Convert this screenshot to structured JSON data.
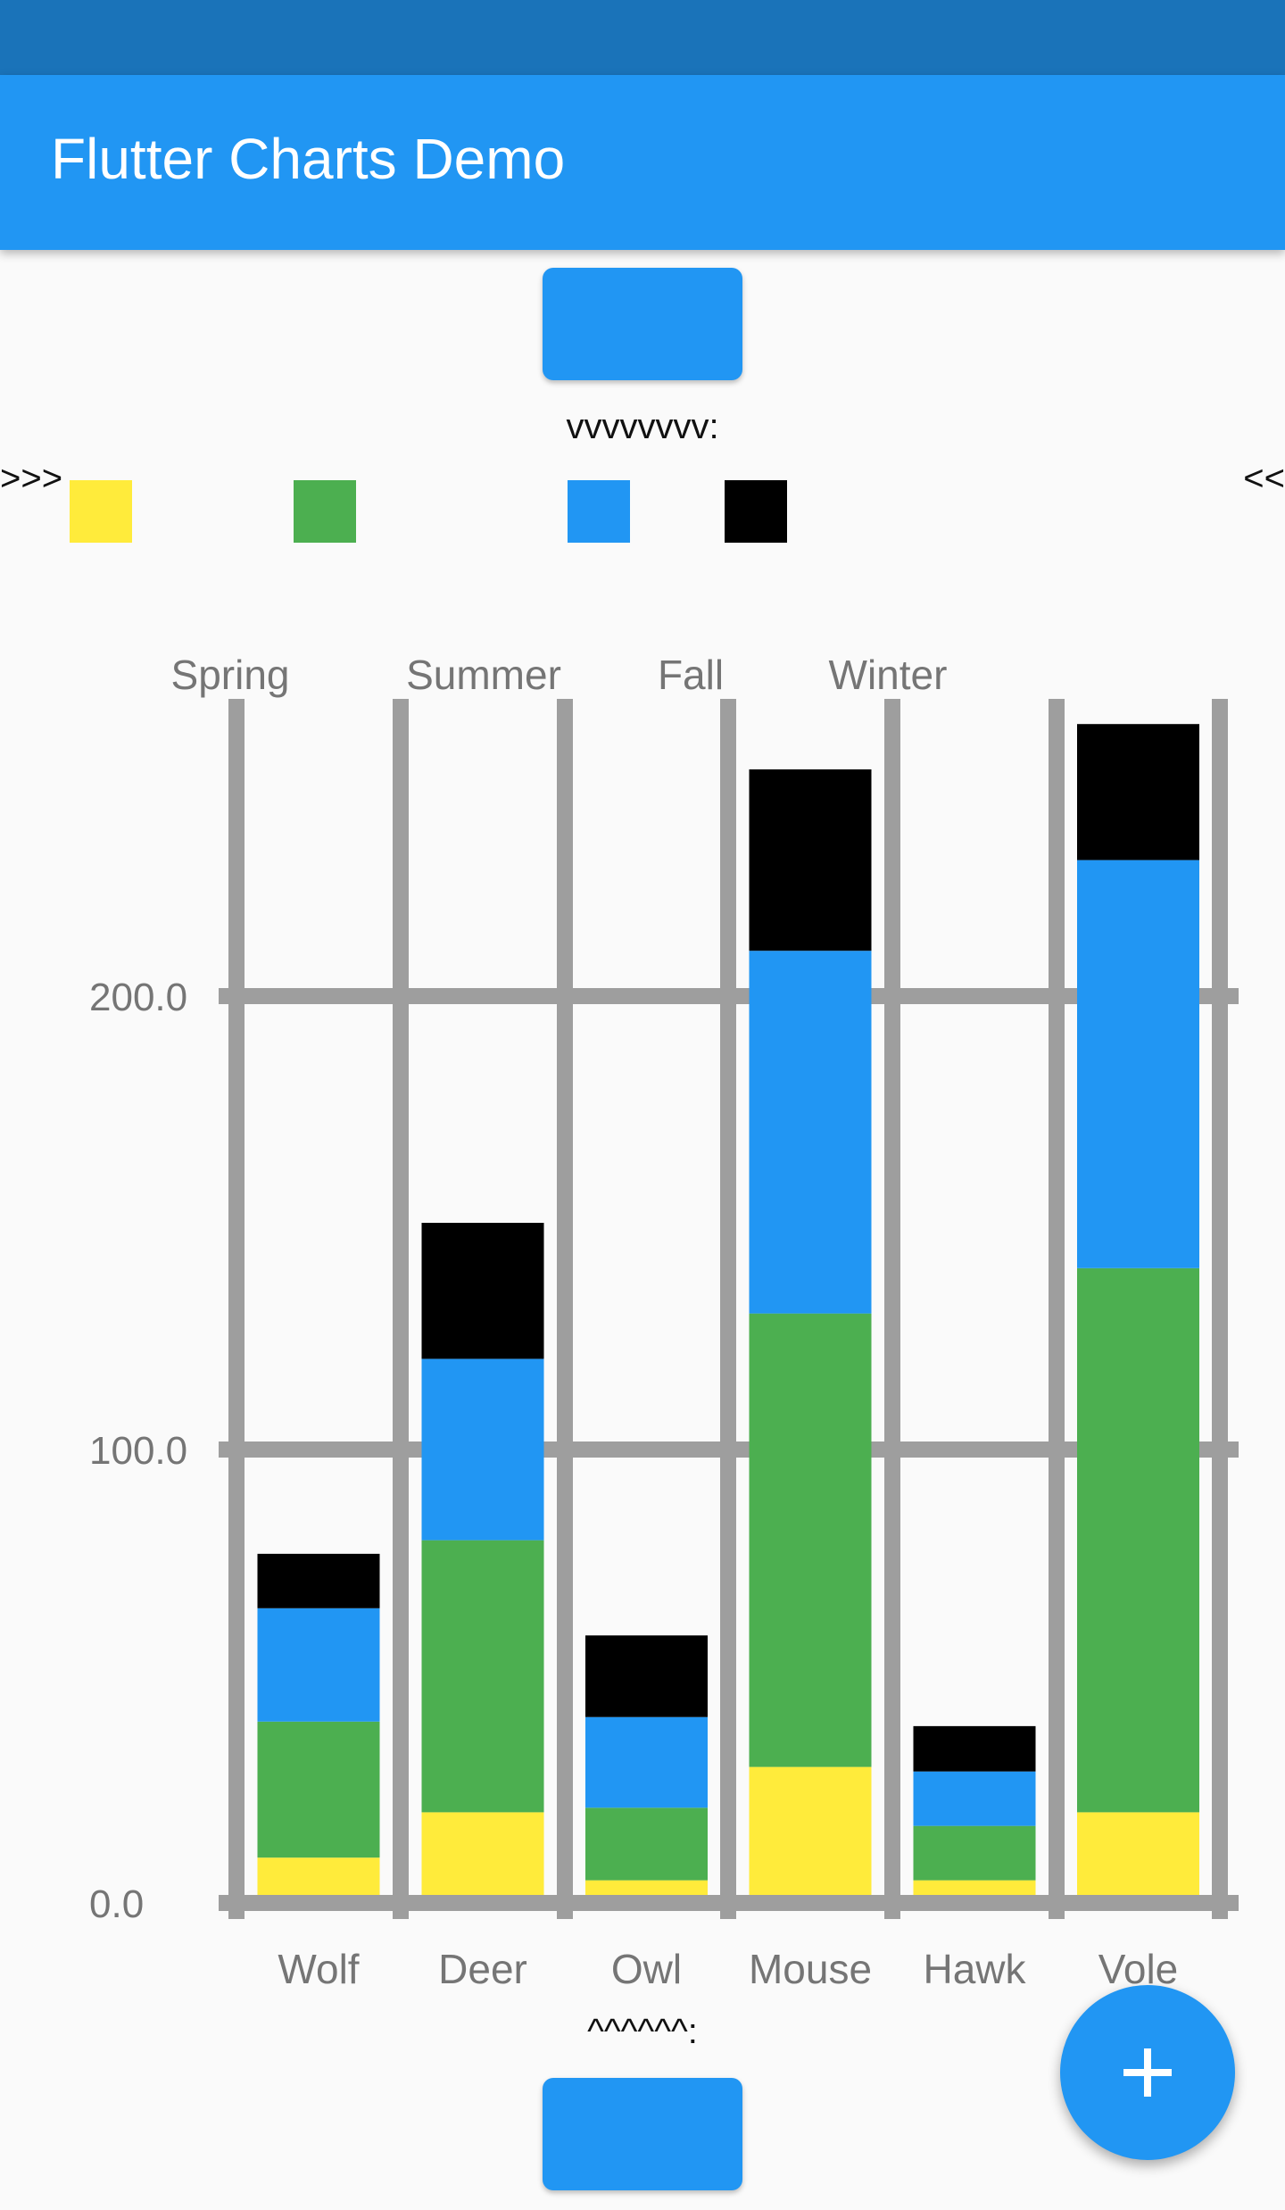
{
  "app_bar": {
    "title": "Flutter Charts Demo"
  },
  "top_label": "vvvvvvvv:",
  "bottom_label": "^^^^^^:",
  "legend": {
    "left_marker": ">>>",
    "right_marker": "<<",
    "entries": [
      {
        "name": "Spring",
        "color": "#ffeb3b"
      },
      {
        "name": "Summer",
        "color": "#4caf50"
      },
      {
        "name": "Fall",
        "color": "#2196f3"
      },
      {
        "name": "Winter",
        "color": "#000000"
      }
    ]
  },
  "chart_data": {
    "type": "bar",
    "stacked": true,
    "categories": [
      "Wolf",
      "Deer",
      "Owl",
      "Mouse",
      "Hawk",
      "Vole"
    ],
    "series": [
      {
        "name": "Spring",
        "color": "#ffeb3b",
        "values": [
          10,
          20,
          5,
          30,
          5,
          20
        ]
      },
      {
        "name": "Summer",
        "color": "#4caf50",
        "values": [
          30,
          60,
          16,
          100,
          12,
          120
        ]
      },
      {
        "name": "Fall",
        "color": "#2196f3",
        "values": [
          25,
          40,
          20,
          80,
          12,
          90
        ]
      },
      {
        "name": "Winter",
        "color": "#000000",
        "values": [
          12,
          30,
          18,
          40,
          10,
          30
        ]
      }
    ],
    "y_ticks": [
      "0.0",
      "100.0",
      "200.0"
    ],
    "y_tick_values": [
      0,
      100,
      200
    ],
    "ylim": [
      0,
      266
    ],
    "grid": true,
    "grid_color": "#9e9e9e",
    "legend_position": "top"
  }
}
